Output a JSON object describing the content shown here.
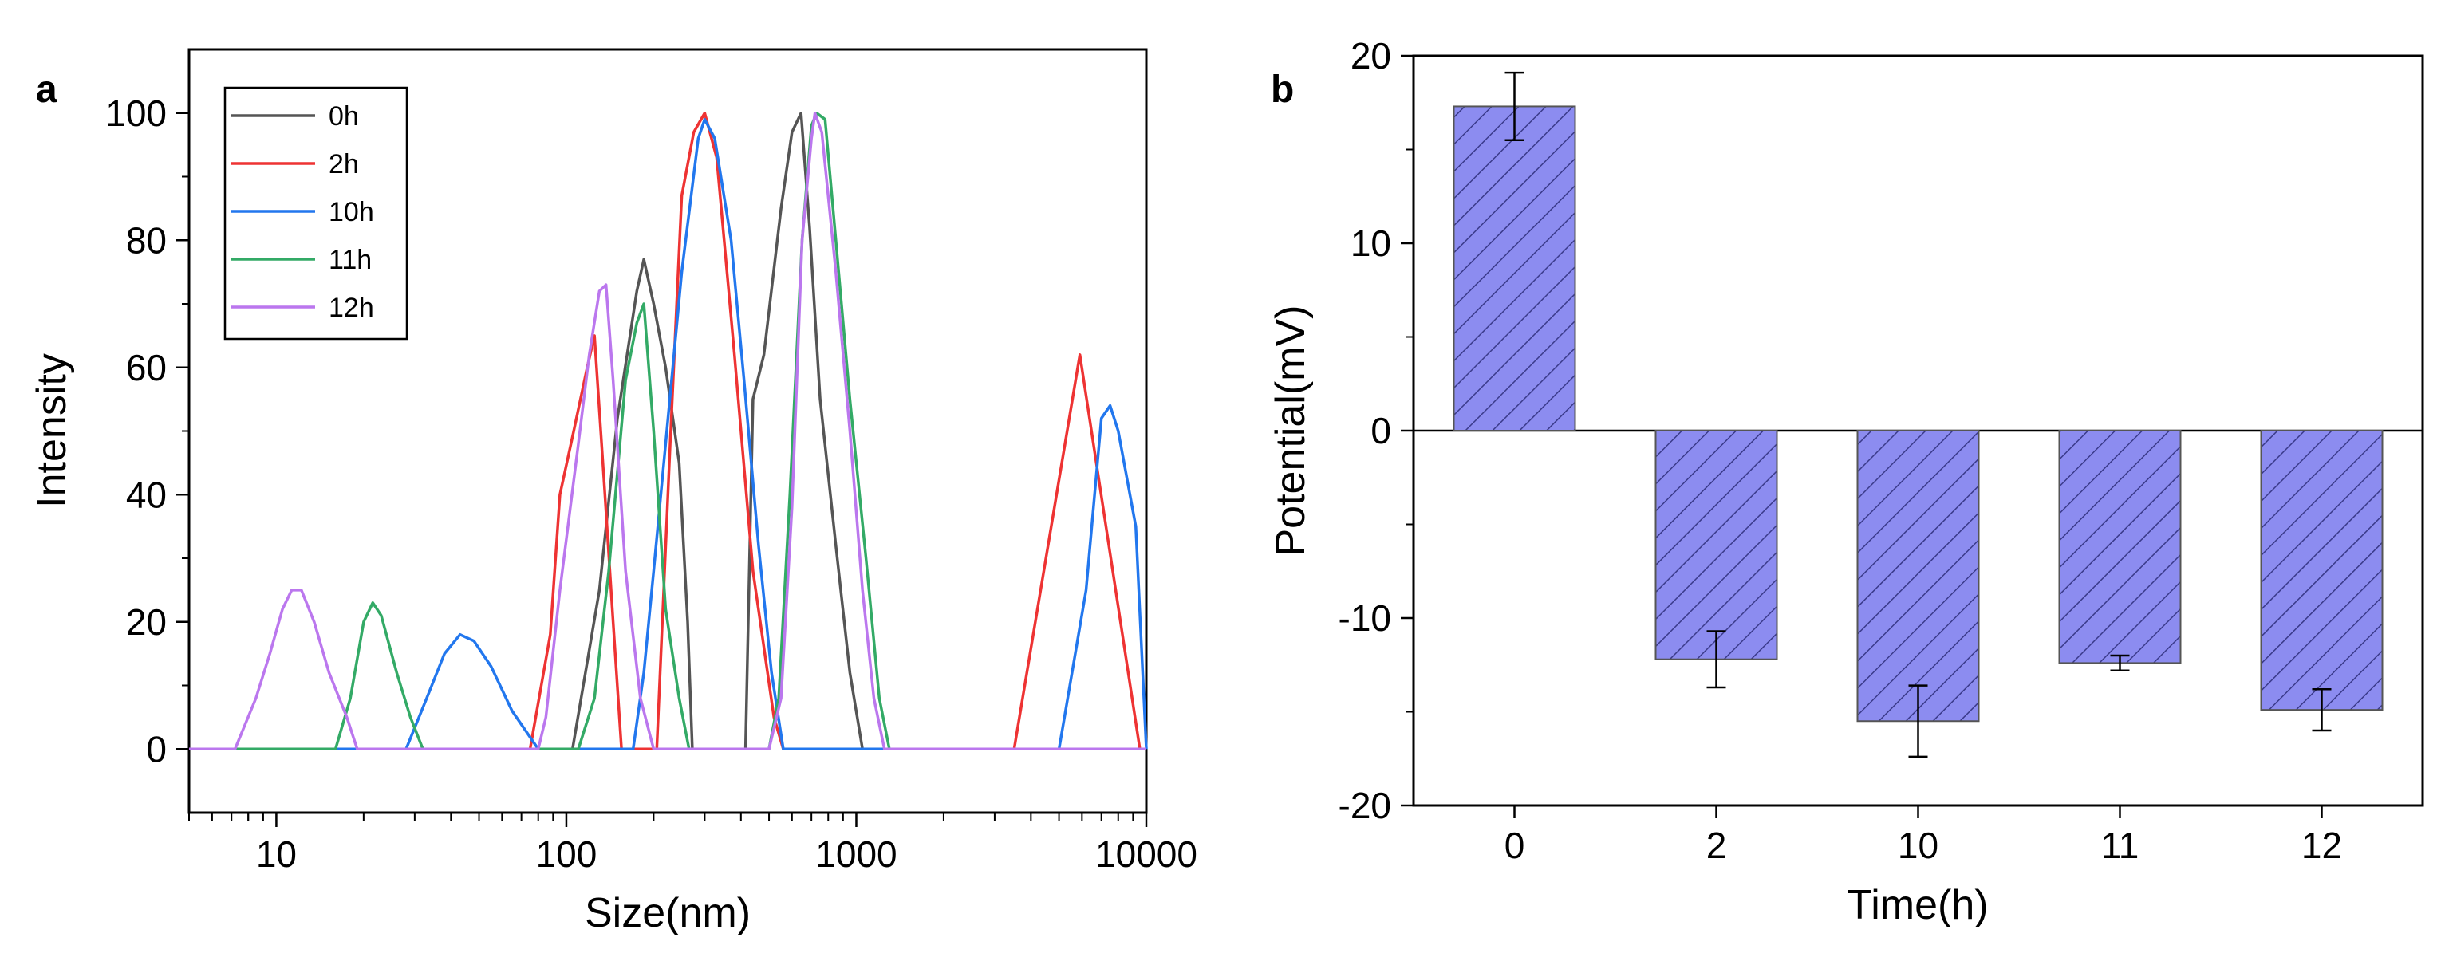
{
  "chart_data": [
    {
      "panel": "a",
      "type": "line",
      "xscale": "log",
      "xlabel": "Size(nm)",
      "ylabel": "Intensity",
      "xlim": [
        5,
        10000
      ],
      "ylim": [
        -10,
        110
      ],
      "xticks": [
        10,
        100,
        1000,
        10000
      ],
      "xtick_labels": [
        "10",
        "100",
        "1000",
        "10000"
      ],
      "yticks": [
        0,
        20,
        40,
        60,
        80,
        100
      ],
      "ytick_labels": [
        "0",
        "20",
        "40",
        "60",
        "80",
        "100"
      ],
      "legend_position": "top-left",
      "series": [
        {
          "name": "0h",
          "color": "#555555",
          "points": [
            [
              5,
              0
            ],
            [
              105,
              0
            ],
            [
              130,
              25
            ],
            [
              150,
              52
            ],
            [
              175,
              72
            ],
            [
              185,
              77
            ],
            [
              200,
              70
            ],
            [
              220,
              60
            ],
            [
              245,
              45
            ],
            [
              262,
              20
            ],
            [
              272,
              0
            ],
            [
              415,
              0
            ],
            [
              440,
              55
            ],
            [
              480,
              62
            ],
            [
              550,
              85
            ],
            [
              600,
              97
            ],
            [
              645,
              100
            ],
            [
              690,
              82
            ],
            [
              750,
              55
            ],
            [
              850,
              32
            ],
            [
              950,
              12
            ],
            [
              1050,
              0
            ],
            [
              10000,
              0
            ]
          ]
        },
        {
          "name": "2h",
          "color": "#ee3333",
          "points": [
            [
              5,
              0
            ],
            [
              75,
              0
            ],
            [
              88,
              18
            ],
            [
              95,
              40
            ],
            [
              106,
              50
            ],
            [
              118,
              60
            ],
            [
              125,
              65
            ],
            [
              135,
              42
            ],
            [
              145,
              20
            ],
            [
              155,
              0
            ],
            [
              205,
              0
            ],
            [
              228,
              48
            ],
            [
              250,
              87
            ],
            [
              275,
              97
            ],
            [
              300,
              100
            ],
            [
              330,
              93
            ],
            [
              380,
              62
            ],
            [
              440,
              28
            ],
            [
              520,
              5
            ],
            [
              560,
              0
            ],
            [
              3500,
              0
            ],
            [
              5900,
              62
            ],
            [
              9500,
              0
            ],
            [
              10000,
              0
            ]
          ]
        },
        {
          "name": "10h",
          "color": "#2277ee",
          "points": [
            [
              5,
              0
            ],
            [
              28,
              0
            ],
            [
              33,
              8
            ],
            [
              38,
              15
            ],
            [
              43,
              18
            ],
            [
              48,
              17
            ],
            [
              55,
              13
            ],
            [
              65,
              6
            ],
            [
              80,
              0
            ],
            [
              170,
              0
            ],
            [
              185,
              12
            ],
            [
              200,
              28
            ],
            [
              220,
              48
            ],
            [
              250,
              75
            ],
            [
              285,
              96
            ],
            [
              300,
              99
            ],
            [
              325,
              96
            ],
            [
              370,
              80
            ],
            [
              410,
              58
            ],
            [
              460,
              32
            ],
            [
              510,
              12
            ],
            [
              560,
              0
            ],
            [
              5000,
              0
            ],
            [
              6200,
              25
            ],
            [
              7000,
              52
            ],
            [
              7500,
              54
            ],
            [
              8000,
              50
            ],
            [
              9200,
              35
            ],
            [
              10000,
              0
            ]
          ]
        },
        {
          "name": "11h",
          "color": "#33aa66",
          "points": [
            [
              5,
              0
            ],
            [
              16,
              0
            ],
            [
              18,
              8
            ],
            [
              20,
              20
            ],
            [
              21.5,
              23
            ],
            [
              23,
              21
            ],
            [
              26,
              12
            ],
            [
              29,
              5
            ],
            [
              32,
              0
            ],
            [
              110,
              0
            ],
            [
              125,
              8
            ],
            [
              140,
              28
            ],
            [
              160,
              58
            ],
            [
              175,
              67
            ],
            [
              185,
              70
            ],
            [
              200,
              50
            ],
            [
              220,
              22
            ],
            [
              245,
              8
            ],
            [
              265,
              0
            ],
            [
              500,
              0
            ],
            [
              540,
              8
            ],
            [
              590,
              40
            ],
            [
              650,
              80
            ],
            [
              700,
              98
            ],
            [
              730,
              100
            ],
            [
              780,
              99
            ],
            [
              850,
              80
            ],
            [
              950,
              55
            ],
            [
              1080,
              30
            ],
            [
              1200,
              8
            ],
            [
              1300,
              0
            ],
            [
              10000,
              0
            ]
          ]
        },
        {
          "name": "12h",
          "color": "#bb77ee",
          "points": [
            [
              5,
              0
            ],
            [
              7.2,
              0
            ],
            [
              8.5,
              8
            ],
            [
              9.5,
              15
            ],
            [
              10.5,
              22
            ],
            [
              11.3,
              25
            ],
            [
              12.2,
              25
            ],
            [
              13.5,
              20
            ],
            [
              15.2,
              12
            ],
            [
              17.5,
              5
            ],
            [
              19,
              0
            ],
            [
              80,
              0
            ],
            [
              85,
              5
            ],
            [
              95,
              25
            ],
            [
              110,
              48
            ],
            [
              120,
              62
            ],
            [
              130,
              72
            ],
            [
              137,
              73
            ],
            [
              145,
              58
            ],
            [
              160,
              28
            ],
            [
              180,
              8
            ],
            [
              200,
              0
            ],
            [
              500,
              0
            ],
            [
              550,
              8
            ],
            [
              600,
              38
            ],
            [
              650,
              80
            ],
            [
              700,
              96
            ],
            [
              720,
              100
            ],
            [
              760,
              97
            ],
            [
              850,
              75
            ],
            [
              950,
              50
            ],
            [
              1050,
              25
            ],
            [
              1150,
              8
            ],
            [
              1250,
              0
            ],
            [
              10000,
              0
            ]
          ]
        }
      ]
    },
    {
      "panel": "b",
      "type": "bar",
      "xlabel": "Time(h)",
      "ylabel": "Potential(mV)",
      "ylim": [
        -20,
        20
      ],
      "yticks": [
        -20,
        -10,
        0,
        10,
        20
      ],
      "ytick_labels": [
        "-20",
        "-10",
        "0",
        "10",
        "20"
      ],
      "categories": [
        "0",
        "2",
        "10",
        "11",
        "12"
      ],
      "values": [
        17.3,
        -12.2,
        -15.5,
        -12.4,
        -14.9
      ],
      "errors": [
        1.8,
        1.5,
        1.9,
        0.4,
        1.1
      ],
      "bar_color": "#8c8cf0",
      "hatch_color": "#3a3a8a"
    }
  ]
}
